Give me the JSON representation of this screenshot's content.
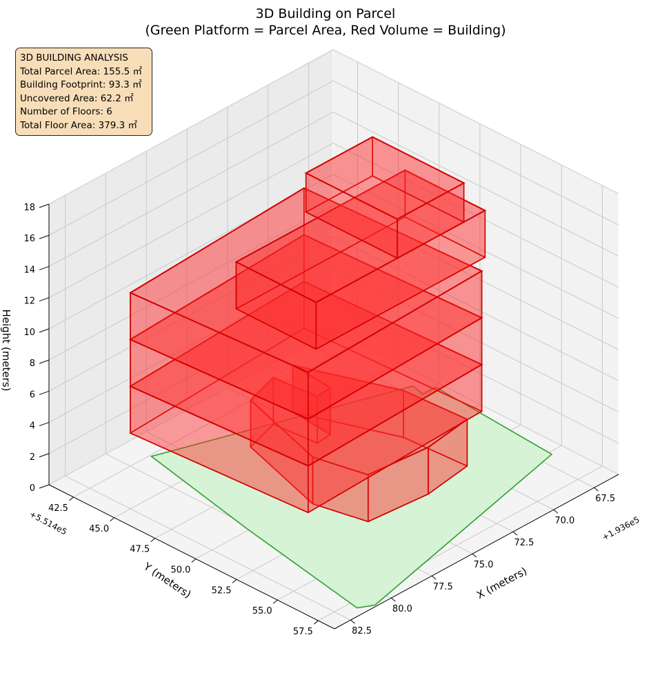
{
  "chart_data": {
    "type": "3d-polygons",
    "title": "3D Building on Parcel",
    "subtitle": "(Green Platform = Parcel Area, Red Volume = Building)",
    "xlabel": "X (meters)",
    "ylabel": "Y (meters)",
    "zlabel": "Height (meters)",
    "x_offset_label": "+1.936e5",
    "y_offset_label": "+5.514e5",
    "x_ticks": [
      "67.5",
      "70.0",
      "72.5",
      "75.0",
      "77.5",
      "80.0",
      "82.5"
    ],
    "y_ticks": [
      "42.5",
      "45.0",
      "47.5",
      "50.0",
      "52.5",
      "55.0",
      "57.5"
    ],
    "z_ticks": [
      "0",
      "2",
      "4",
      "6",
      "8",
      "10",
      "12",
      "14",
      "16",
      "18"
    ],
    "xlim": [
      66,
      83.5
    ],
    "ylim": [
      41,
      58.5
    ],
    "zlim": [
      0,
      18
    ],
    "grid": true,
    "colors": {
      "parcel_fill": "#d4f2d4",
      "parcel_edge": "#2ca02c",
      "building_fill": "#ff2a2a",
      "building_edge": "#d40000"
    },
    "parcel": {
      "name": "Parcel Area",
      "outline": [
        [
          66.8,
          55.2
        ],
        [
          66.3,
          47.6
        ],
        [
          67.1,
          47.6
        ],
        [
          66.9,
          46.8
        ],
        [
          78.8,
          42.6
        ],
        [
          80.2,
          49.8
        ],
        [
          81.6,
          58.0
        ],
        [
          80.9,
          58.4
        ]
      ],
      "z": 0
    },
    "building": {
      "name": "Building",
      "floors": [
        {
          "level": 1,
          "z_range": [
            0,
            3
          ],
          "footprint": [
            [
              70.2,
              49.5
            ],
            [
              72.0,
              44.5
            ],
            [
              72.2,
              47.0
            ],
            [
              73.1,
              47.1
            ],
            [
              73.3,
              44.6
            ],
            [
              75.3,
              45.2
            ],
            [
              76.8,
              50.5
            ],
            [
              76.2,
              53.3
            ],
            [
              72.8,
              53.6
            ],
            [
              70.0,
              53.2
            ]
          ]
        },
        {
          "level": 2,
          "z_range": [
            3,
            6
          ],
          "footprint": [
            [
              69.5,
              42.7
            ],
            [
              80.8,
              43.3
            ],
            [
              80.2,
              53.6
            ],
            [
              69.1,
              53.2
            ]
          ]
        },
        {
          "level": 3,
          "z_range": [
            6,
            9
          ],
          "footprint": [
            [
              69.5,
              42.7
            ],
            [
              80.8,
              43.3
            ],
            [
              80.2,
              53.6
            ],
            [
              69.1,
              53.2
            ]
          ]
        },
        {
          "level": 4,
          "z_range": [
            9,
            12
          ],
          "footprint": [
            [
              69.5,
              42.7
            ],
            [
              80.8,
              43.3
            ],
            [
              80.2,
              53.6
            ],
            [
              69.1,
              53.2
            ]
          ]
        },
        {
          "level": 5,
          "z_range": [
            12,
            15
          ],
          "footprint": [
            [
              68.2,
              47.6
            ],
            [
              78.6,
              47.6
            ],
            [
              78.6,
              52.5
            ],
            [
              68.2,
              52.5
            ]
          ]
        },
        {
          "level": 6,
          "z_range": [
            15,
            17.5
          ],
          "footprint": [
            [
              69.5,
              46.9
            ],
            [
              73.6,
              46.9
            ],
            [
              73.6,
              52.5
            ],
            [
              69.5,
              52.5
            ]
          ]
        }
      ]
    }
  },
  "info": {
    "title": "3D BUILDING ANALYSIS",
    "total_parcel_area": "Total Parcel Area: 155.5 ㎡",
    "building_footprint": "Building Footprint: 93.3 ㎡",
    "uncovered_area": "Uncovered Area: 62.2 ㎡",
    "number_of_floors": "Number of Floors: 6",
    "total_floor_area": "Total Floor Area: 379.3 ㎡"
  }
}
